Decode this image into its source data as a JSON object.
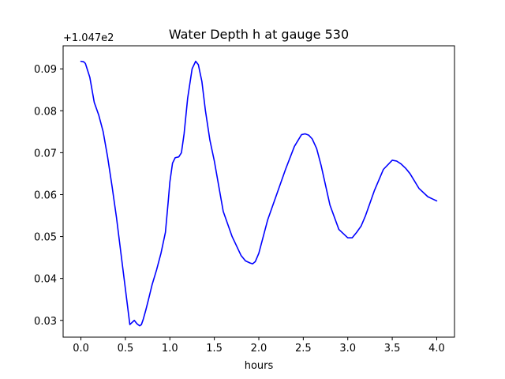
{
  "chart_data": {
    "type": "line",
    "title": "Water Depth h at gauge 530",
    "xlabel": "hours",
    "ylabel": "",
    "y_offset_label": "+1.047e2",
    "xlim": [
      -0.2,
      4.2
    ],
    "ylim": [
      0.026,
      0.0955
    ],
    "x_ticks": [
      0.0,
      0.5,
      1.0,
      1.5,
      2.0,
      2.5,
      3.0,
      3.5,
      4.0
    ],
    "x_tick_labels": [
      "0.0",
      "0.5",
      "1.0",
      "1.5",
      "2.0",
      "2.5",
      "3.0",
      "3.5",
      "4.0"
    ],
    "y_ticks": [
      0.03,
      0.04,
      0.05,
      0.06,
      0.07,
      0.08,
      0.09
    ],
    "y_tick_labels": [
      "0.03",
      "0.04",
      "0.05",
      "0.06",
      "0.07",
      "0.08",
      "0.09"
    ],
    "grid": false,
    "series": [
      {
        "color": "#0000ff",
        "x": [
          0.0,
          0.03,
          0.05,
          0.1,
          0.15,
          0.2,
          0.25,
          0.3,
          0.35,
          0.4,
          0.45,
          0.5,
          0.55,
          0.6,
          0.63,
          0.66,
          0.68,
          0.7,
          0.73,
          0.76,
          0.8,
          0.85,
          0.9,
          0.95,
          0.98,
          1.0,
          1.03,
          1.06,
          1.1,
          1.13,
          1.16,
          1.2,
          1.25,
          1.29,
          1.32,
          1.36,
          1.4,
          1.45,
          1.5,
          1.55,
          1.6,
          1.7,
          1.8,
          1.85,
          1.9,
          1.93,
          1.96,
          2.0,
          2.05,
          2.1,
          2.2,
          2.3,
          2.4,
          2.48,
          2.52,
          2.56,
          2.6,
          2.65,
          2.7,
          2.8,
          2.9,
          3.0,
          3.05,
          3.1,
          3.15,
          3.2,
          3.3,
          3.4,
          3.5,
          3.55,
          3.6,
          3.65,
          3.7,
          3.8,
          3.9,
          3.95,
          4.0
        ],
        "values": [
          0.0918,
          0.0917,
          0.0913,
          0.088,
          0.082,
          0.079,
          0.075,
          0.069,
          0.062,
          0.0545,
          0.046,
          0.0375,
          0.029,
          0.03,
          0.0292,
          0.0287,
          0.029,
          0.0302,
          0.0325,
          0.035,
          0.0385,
          0.042,
          0.046,
          0.051,
          0.058,
          0.063,
          0.0675,
          0.0688,
          0.069,
          0.07,
          0.0745,
          0.083,
          0.09,
          0.0918,
          0.091,
          0.087,
          0.08,
          0.073,
          0.068,
          0.062,
          0.056,
          0.05,
          0.0455,
          0.0442,
          0.0437,
          0.0435,
          0.044,
          0.046,
          0.05,
          0.054,
          0.06,
          0.066,
          0.0715,
          0.0743,
          0.0745,
          0.0742,
          0.0733,
          0.071,
          0.067,
          0.0575,
          0.0517,
          0.0497,
          0.0497,
          0.051,
          0.0525,
          0.055,
          0.061,
          0.066,
          0.0682,
          0.068,
          0.0673,
          0.0663,
          0.065,
          0.0615,
          0.0595,
          0.059,
          0.0585
        ]
      }
    ]
  }
}
